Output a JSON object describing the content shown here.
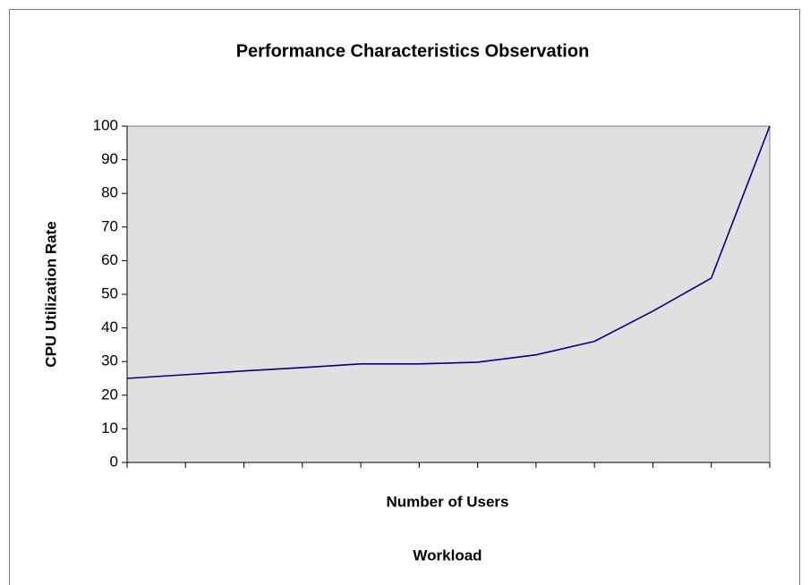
{
  "chart_data": {
    "type": "line",
    "title": "Performance Characteristics Observation",
    "x_label": "Number of Users",
    "y_label": "CPU Utilization Rate",
    "footnote": "Workload",
    "categories": [
      null,
      null,
      null,
      null,
      null,
      null,
      null,
      null,
      null,
      null,
      null,
      null
    ],
    "series": [
      {
        "name": "CPU Utilization Rate",
        "color": "#000080",
        "values": [
          25,
          26.1,
          27.2,
          28.2,
          29.3,
          29.3,
          29.8,
          32,
          36,
          45,
          54.8,
          100
        ]
      }
    ],
    "ylim": [
      0,
      100
    ],
    "yticks": [
      0,
      10,
      20,
      30,
      40,
      50,
      60,
      70,
      80,
      90,
      100
    ],
    "grid": false,
    "legend": false,
    "plot_background": "#e0e0e0"
  }
}
